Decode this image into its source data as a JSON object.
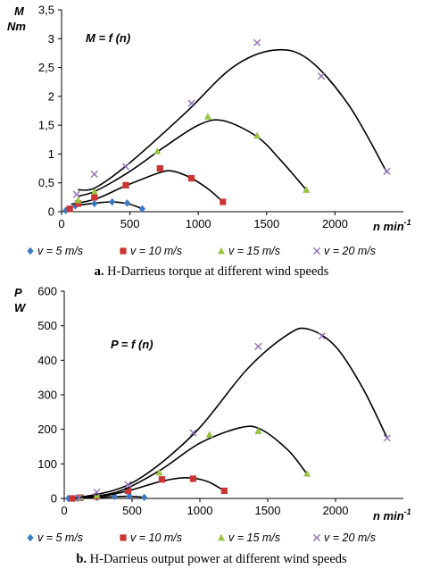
{
  "series_styles": [
    {
      "marker": "diamond",
      "color": "#3a78c3"
    },
    {
      "marker": "square",
      "color": "#cc3333"
    },
    {
      "marker": "triangle",
      "color": "#99c240"
    },
    {
      "marker": "x",
      "color": "#8c72b8"
    }
  ],
  "fit_line_color": "#000000",
  "chart_data": [
    {
      "type": "scatter",
      "title": "",
      "equation": "M = f (n)",
      "ylabel": "M",
      "ylabel_unit": "Nm",
      "xlabel": "n min",
      "xlabel_sup": "-1",
      "xlim": [
        0,
        2500
      ],
      "ylim": [
        0,
        3.5
      ],
      "xticks": [
        "0",
        "500",
        "1000",
        "1500",
        "2000"
      ],
      "yticks": [
        "0",
        "0,5",
        "1",
        "1,5",
        "2",
        "2,5",
        "3",
        "3,5"
      ],
      "grid": false,
      "legend": "bottom",
      "legend_text": [
        "v = 5 m/s",
        "v = 10 m/s",
        "v = 15 m/s",
        "v = 20 m/s"
      ],
      "caption_label": "a.",
      "caption_text": "H-Darrieus torque at different wind speeds",
      "series": [
        {
          "points": [
            [
              30,
              0.02
            ],
            [
              100,
              0.1
            ],
            [
              240,
              0.14
            ],
            [
              370,
              0.17
            ],
            [
              480,
              0.15
            ],
            [
              590,
              0.05
            ]
          ],
          "trend": [
            [
              30,
              0.06
            ],
            [
              120,
              0.11
            ],
            [
              250,
              0.15
            ],
            [
              370,
              0.17
            ],
            [
              480,
              0.14
            ],
            [
              560,
              0.08
            ],
            [
              590,
              0.04
            ]
          ]
        },
        {
          "points": [
            [
              60,
              0.05
            ],
            [
              120,
              0.14
            ],
            [
              240,
              0.25
            ],
            [
              470,
              0.46
            ],
            [
              720,
              0.75
            ],
            [
              950,
              0.58
            ],
            [
              1180,
              0.17
            ]
          ],
          "trend": [
            [
              70,
              0.13
            ],
            [
              250,
              0.22
            ],
            [
              470,
              0.45
            ],
            [
              720,
              0.68
            ],
            [
              820,
              0.7
            ],
            [
              950,
              0.58
            ],
            [
              1080,
              0.38
            ],
            [
              1180,
              0.17
            ]
          ]
        },
        {
          "points": [
            [
              120,
              0.2
            ],
            [
              240,
              0.35
            ],
            [
              700,
              1.05
            ],
            [
              1070,
              1.65
            ],
            [
              1430,
              1.32
            ],
            [
              1790,
              0.38
            ]
          ],
          "trend": [
            [
              120,
              0.27
            ],
            [
              250,
              0.36
            ],
            [
              500,
              0.7
            ],
            [
              750,
              1.12
            ],
            [
              1000,
              1.5
            ],
            [
              1180,
              1.58
            ],
            [
              1430,
              1.3
            ],
            [
              1600,
              0.9
            ],
            [
              1790,
              0.38
            ]
          ]
        },
        {
          "points": [
            [
              110,
              0.3
            ],
            [
              240,
              0.65
            ],
            [
              470,
              0.78
            ],
            [
              950,
              1.88
            ],
            [
              1430,
              2.93
            ],
            [
              1900,
              2.35
            ],
            [
              2380,
              0.7
            ]
          ],
          "trend": [
            [
              120,
              0.38
            ],
            [
              250,
              0.42
            ],
            [
              500,
              0.85
            ],
            [
              900,
              1.7
            ],
            [
              1250,
              2.5
            ],
            [
              1550,
              2.8
            ],
            [
              1800,
              2.65
            ],
            [
              2100,
              1.85
            ],
            [
              2380,
              0.68
            ]
          ]
        }
      ]
    },
    {
      "type": "scatter",
      "title": "",
      "equation": "P = f (n)",
      "ylabel": "P",
      "ylabel_unit": "W",
      "xlabel": "n min",
      "xlabel_sup": "-1",
      "xlim": [
        0,
        2500
      ],
      "ylim": [
        0,
        600
      ],
      "xticks": [
        "0",
        "500",
        "1000",
        "1500",
        "2000"
      ],
      "yticks": [
        "0",
        "100",
        "200",
        "300",
        "400",
        "500",
        "600"
      ],
      "grid": false,
      "legend": "bottom",
      "legend_text": [
        "v = 5 m/s",
        "v = 10 m/s",
        "v = 15 m/s",
        "v = 20 m/s"
      ],
      "caption_label": "b.",
      "caption_text": "H-Darrieus output power at different wind speeds",
      "series": [
        {
          "points": [
            [
              30,
              0
            ],
            [
              100,
              1
            ],
            [
              240,
              3
            ],
            [
              370,
              6
            ],
            [
              480,
              7
            ],
            [
              590,
              3
            ]
          ],
          "trend": [
            [
              30,
              0
            ],
            [
              200,
              2
            ],
            [
              370,
              5
            ],
            [
              480,
              6
            ],
            [
              590,
              3
            ]
          ]
        },
        {
          "points": [
            [
              60,
              0
            ],
            [
              120,
              2
            ],
            [
              240,
              6
            ],
            [
              470,
              22
            ],
            [
              720,
              55
            ],
            [
              950,
              57
            ],
            [
              1180,
              22
            ]
          ],
          "trend": [
            [
              60,
              1
            ],
            [
              300,
              8
            ],
            [
              500,
              25
            ],
            [
              720,
              50
            ],
            [
              900,
              60
            ],
            [
              1050,
              50
            ],
            [
              1180,
              22
            ]
          ]
        },
        {
          "points": [
            [
              120,
              3
            ],
            [
              240,
              9
            ],
            [
              700,
              75
            ],
            [
              1070,
              185
            ],
            [
              1430,
              195
            ],
            [
              1790,
              72
            ]
          ],
          "trend": [
            [
              120,
              2
            ],
            [
              400,
              20
            ],
            [
              700,
              80
            ],
            [
              1000,
              160
            ],
            [
              1300,
              205
            ],
            [
              1450,
              200
            ],
            [
              1650,
              140
            ],
            [
              1790,
              70
            ]
          ]
        },
        {
          "points": [
            [
              110,
              2
            ],
            [
              240,
              18
            ],
            [
              470,
              40
            ],
            [
              950,
              190
            ],
            [
              1430,
              440
            ],
            [
              1900,
              470
            ],
            [
              2380,
              175
            ]
          ],
          "trend": [
            [
              110,
              2
            ],
            [
              500,
              45
            ],
            [
              950,
              185
            ],
            [
              1350,
              375
            ],
            [
              1650,
              475
            ],
            [
              1800,
              490
            ],
            [
              2000,
              440
            ],
            [
              2200,
              320
            ],
            [
              2380,
              175
            ]
          ]
        }
      ]
    }
  ]
}
